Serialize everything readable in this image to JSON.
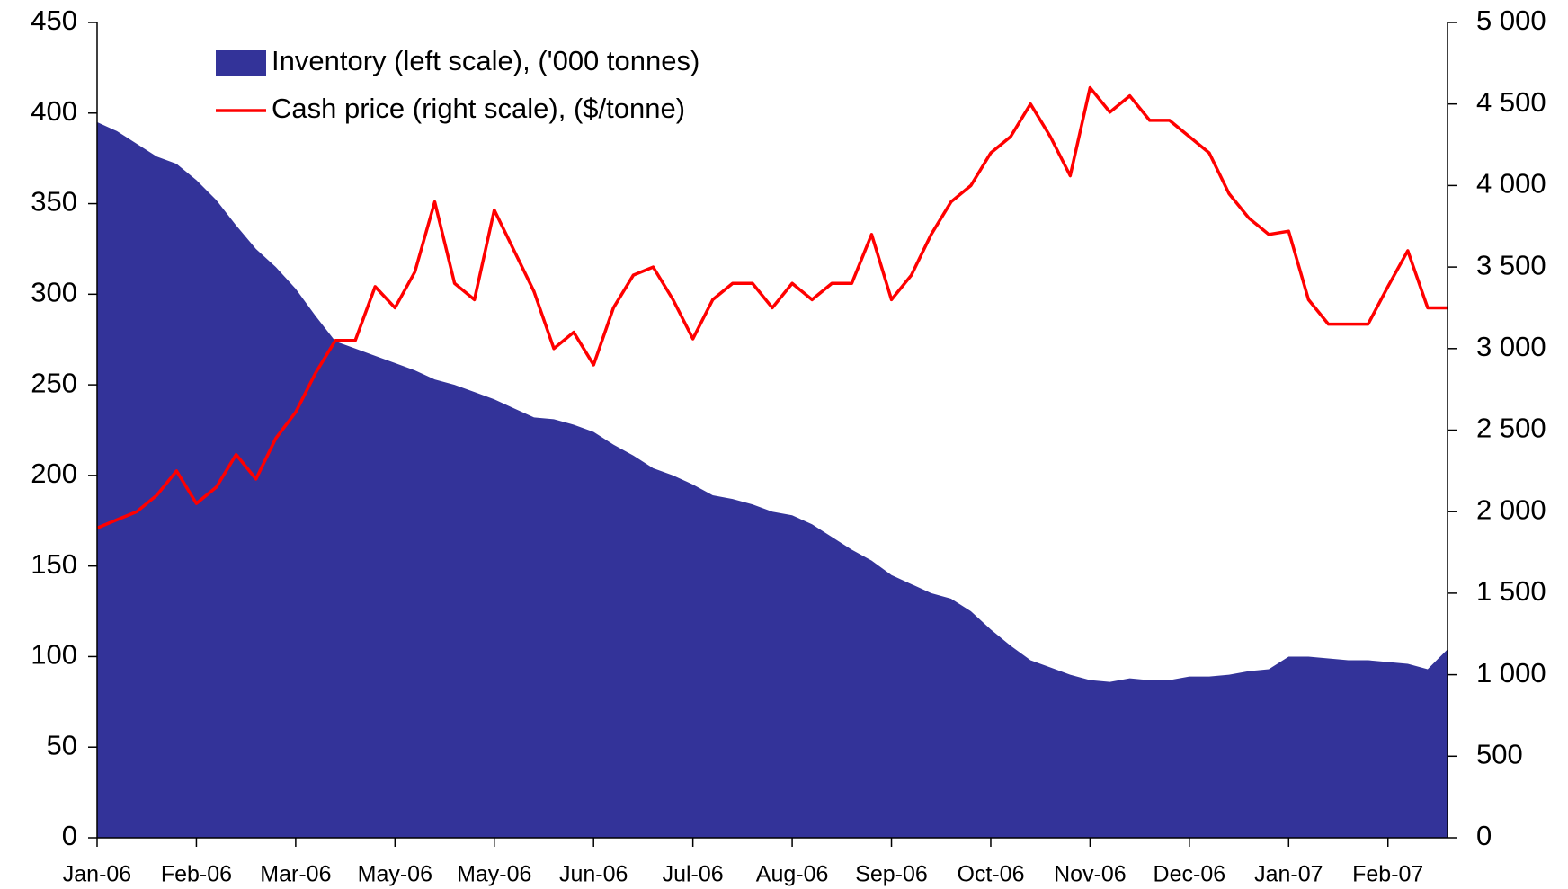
{
  "chart_data": {
    "type": "combo",
    "xlim": [
      0,
      68
    ],
    "xticks": [
      {
        "value": 0,
        "label": "Jan-06"
      },
      {
        "value": 5,
        "label": "Feb-06"
      },
      {
        "value": 10,
        "label": "Mar-06"
      },
      {
        "value": 15,
        "label": "May-06"
      },
      {
        "value": 20,
        "label": "May-06"
      },
      {
        "value": 25,
        "label": "Jun-06"
      },
      {
        "value": 30,
        "label": "Jul-06"
      },
      {
        "value": 35,
        "label": "Aug-06"
      },
      {
        "value": 40,
        "label": "Sep-06"
      },
      {
        "value": 45,
        "label": "Oct-06"
      },
      {
        "value": 50,
        "label": "Nov-06"
      },
      {
        "value": 55,
        "label": "Dec-06"
      },
      {
        "value": 60,
        "label": "Jan-07"
      },
      {
        "value": 65,
        "label": "Feb-07"
      }
    ],
    "ylim": [
      0,
      450
    ],
    "yticks": [
      0,
      50,
      100,
      150,
      200,
      250,
      300,
      350,
      400,
      450
    ],
    "y2lim": [
      0,
      5000
    ],
    "y2ticks": [
      0,
      500,
      {
        "value": 1000,
        "label": "1 000"
      },
      {
        "value": 1500,
        "label": "1 500"
      },
      {
        "value": 2000,
        "label": "2 000"
      },
      {
        "value": 2500,
        "label": "2 500"
      },
      {
        "value": 3000,
        "label": "3 000"
      },
      {
        "value": 3500,
        "label": "3 500"
      },
      {
        "value": 4000,
        "label": "4 000"
      },
      {
        "value": 4500,
        "label": "4 500"
      },
      {
        "value": 5000,
        "label": "5 000"
      }
    ],
    "legend": "upper left",
    "series": [
      {
        "name": "Inventory (left scale), ('000 tonnes)",
        "type": "area",
        "color": "#333399",
        "values": [
          395,
          390,
          383,
          376,
          372,
          363,
          352,
          338,
          325,
          315,
          303,
          288,
          274,
          270,
          266,
          262,
          258,
          253,
          250,
          246,
          242,
          237,
          232,
          231,
          228,
          224,
          217,
          211,
          204,
          200,
          195,
          189,
          187,
          184,
          180,
          178,
          173,
          166,
          159,
          153,
          145,
          140,
          135,
          132,
          125,
          115,
          106,
          98,
          94,
          90,
          87,
          86,
          88,
          87,
          87,
          89,
          89,
          90,
          92,
          93,
          100,
          100,
          99,
          98,
          98,
          97,
          96,
          93,
          104
        ]
      },
      {
        "name": "Cash price (right scale), ($/tonne)",
        "type": "line",
        "color": "#ff0000",
        "axis": "y2",
        "values": [
          1900,
          1950,
          2000,
          2100,
          2250,
          2050,
          2150,
          2350,
          2200,
          2450,
          2610,
          2850,
          3050,
          3050,
          3380,
          3250,
          3470,
          3900,
          3400,
          3300,
          3850,
          3600,
          3350,
          3000,
          3100,
          2900,
          3250,
          3450,
          3500,
          3300,
          3060,
          3300,
          3400,
          3400,
          3250,
          3400,
          3300,
          3400,
          3400,
          3700,
          3300,
          3450,
          3700,
          3900,
          4000,
          4200,
          4300,
          4500,
          4300,
          4060,
          4600,
          4450,
          4550,
          4400,
          4400,
          4300,
          4200,
          3950,
          3800,
          3700,
          3720,
          3300,
          3150,
          3150,
          3150,
          3380,
          3600,
          3250,
          3250
        ]
      }
    ]
  }
}
